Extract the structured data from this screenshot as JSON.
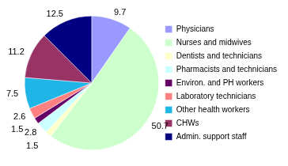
{
  "chart_data": {
    "type": "pie",
    "categories": [
      "Physicians",
      "Nurses and midwives",
      "Dentists and technicians",
      "Pharmacists and technicians",
      "Environ. and PH workers",
      "Laboratory technicians",
      "Other health workers",
      "CHWs",
      "Admin. support staff"
    ],
    "values": [
      9.7,
      50.7,
      1.5,
      2.8,
      1.5,
      2.6,
      7.5,
      11.2,
      12.5
    ],
    "colors": [
      "#9999ff",
      "#ccffcc",
      "#ffffcc",
      "#ccffff",
      "#660066",
      "#ff8080",
      "#1fb5e6",
      "#993366",
      "#000080"
    ],
    "data_labels": true,
    "legend": "right"
  }
}
